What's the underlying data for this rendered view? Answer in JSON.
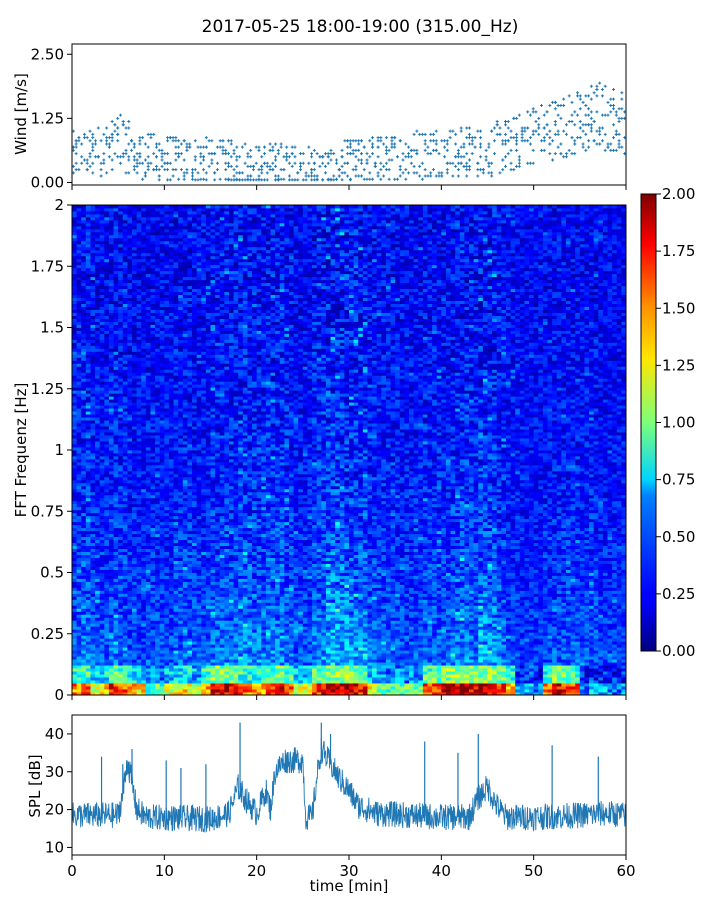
{
  "figure": {
    "title": "2017-05-25 18:00-19:00 (315.00_Hz)"
  },
  "chart_data": [
    {
      "id": "wind",
      "type": "scatter",
      "ylabel": "Wind [m/s]",
      "xlabel": "",
      "xlim": [
        0,
        60
      ],
      "ylim": [
        -0.05,
        2.7
      ],
      "xticks": [
        0,
        10,
        20,
        30,
        40,
        50,
        60
      ],
      "yticks": [
        0.0,
        1.25,
        2.5
      ],
      "ytick_labels": [
        "0.00",
        "1.25",
        "2.50"
      ],
      "color": "#1f77b4",
      "trend": {
        "x": [
          0,
          3,
          5,
          7,
          10,
          15,
          20,
          25,
          28,
          30,
          35,
          40,
          45,
          48,
          50,
          55,
          57,
          60
        ],
        "y": [
          0.5,
          0.6,
          0.85,
          0.55,
          0.45,
          0.4,
          0.35,
          0.3,
          0.22,
          0.4,
          0.5,
          0.6,
          0.6,
          0.75,
          0.95,
          1.15,
          1.3,
          1.2
        ]
      }
    },
    {
      "id": "spectrogram",
      "type": "heatmap",
      "ylabel": "FFT Frequenz [Hz]",
      "xlabel": "",
      "xlim": [
        0,
        60
      ],
      "ylim": [
        0,
        2
      ],
      "xticks": [
        0,
        10,
        20,
        30,
        40,
        50,
        60
      ],
      "yticks": [
        0,
        0.25,
        0.5,
        0.75,
        1,
        1.25,
        1.5,
        1.75,
        2
      ],
      "ytick_labels": [
        "0",
        "0.25",
        "0.5",
        "0.75",
        "1",
        "1.25",
        "1.5",
        "1.75",
        "2"
      ],
      "colormap": "jet",
      "colorbar": {
        "range": [
          0.0,
          2.0
        ],
        "ticks": [
          0.0,
          0.25,
          0.5,
          0.75,
          1.0,
          1.25,
          1.5,
          1.75,
          2.0
        ],
        "tick_labels": [
          "0.00",
          "0.25",
          "0.50",
          "0.75",
          "1.00",
          "1.25",
          "1.50",
          "1.75",
          "2.00"
        ]
      },
      "activity_by_minute": [
        0.6,
        0.75,
        0.6,
        0.55,
        0.7,
        0.65,
        0.5,
        0.45,
        0.55,
        0.5,
        0.5,
        0.6,
        0.65,
        0.55,
        0.55,
        0.7,
        0.75,
        0.7,
        0.8,
        0.75,
        0.75,
        0.8,
        0.8,
        0.7,
        0.55,
        0.5,
        0.75,
        0.9,
        1.0,
        0.95,
        0.9,
        0.85,
        0.7,
        0.6,
        0.6,
        0.55,
        0.55,
        0.55,
        0.65,
        0.6,
        0.6,
        0.75,
        0.8,
        0.7,
        0.9,
        0.85,
        0.7,
        0.5,
        0.45,
        0.4,
        0.4,
        0.45,
        0.55,
        0.6,
        0.55,
        0.5,
        0.55,
        0.45,
        0.45,
        0.4
      ],
      "low_band_intensity_by_minute": [
        1.5,
        1.6,
        1.2,
        1.3,
        1.7,
        1.6,
        1.4,
        1.3,
        0.9,
        0.9,
        1.2,
        1.3,
        1.3,
        1.1,
        1.5,
        1.8,
        1.8,
        1.7,
        1.6,
        1.5,
        1.5,
        1.7,
        1.8,
        1.6,
        1.2,
        1.2,
        1.6,
        1.8,
        1.9,
        1.9,
        1.8,
        1.7,
        1.2,
        1.0,
        0.9,
        0.9,
        0.9,
        1.0,
        1.6,
        1.7,
        1.8,
        1.9,
        1.9,
        1.8,
        1.9,
        1.8,
        1.7,
        1.4,
        0.6,
        0.6,
        0.5,
        1.5,
        1.8,
        1.7,
        1.6,
        0.5,
        0.6,
        0.6,
        0.5,
        0.5
      ]
    },
    {
      "id": "spl",
      "type": "line",
      "ylabel": "SPL [dB]",
      "xlabel": "time [min]",
      "xlim": [
        0,
        60
      ],
      "ylim": [
        8,
        45
      ],
      "xticks": [
        0,
        10,
        20,
        30,
        40,
        50,
        60
      ],
      "xtick_labels": [
        "0",
        "10",
        "20",
        "30",
        "40",
        "50",
        "60"
      ],
      "yticks": [
        10,
        20,
        30,
        40
      ],
      "ytick_labels": [
        "10",
        "20",
        "30",
        "40"
      ],
      "color": "#1f77b4",
      "baseline": {
        "x": [
          0,
          5,
          5.5,
          6,
          6.5,
          7,
          8,
          15,
          17,
          18,
          19,
          20,
          21,
          21.5,
          22,
          23,
          25,
          25.3,
          26,
          26.5,
          27,
          28,
          29,
          30,
          31,
          33,
          40,
          43,
          44,
          45,
          46,
          47,
          50,
          55,
          58,
          60
        ],
        "y": [
          18.5,
          18.5,
          24,
          33,
          27,
          20,
          18,
          17.5,
          19,
          26,
          22,
          19,
          25,
          20,
          30,
          33,
          33,
          18,
          18,
          28,
          36,
          32,
          28,
          25,
          21,
          19,
          18,
          18,
          23,
          26,
          21,
          18,
          18,
          18.5,
          19,
          18.5
        ]
      },
      "spikes": [
        {
          "x": 3.2,
          "y": 34
        },
        {
          "x": 5.5,
          "y": 32
        },
        {
          "x": 6.5,
          "y": 36
        },
        {
          "x": 10.2,
          "y": 33
        },
        {
          "x": 11.8,
          "y": 31
        },
        {
          "x": 14.5,
          "y": 32
        },
        {
          "x": 18.2,
          "y": 43
        },
        {
          "x": 27,
          "y": 43
        },
        {
          "x": 28,
          "y": 40
        },
        {
          "x": 38.2,
          "y": 38
        },
        {
          "x": 41.8,
          "y": 35
        },
        {
          "x": 44,
          "y": 40
        },
        {
          "x": 52,
          "y": 37
        },
        {
          "x": 57,
          "y": 34
        }
      ]
    }
  ]
}
